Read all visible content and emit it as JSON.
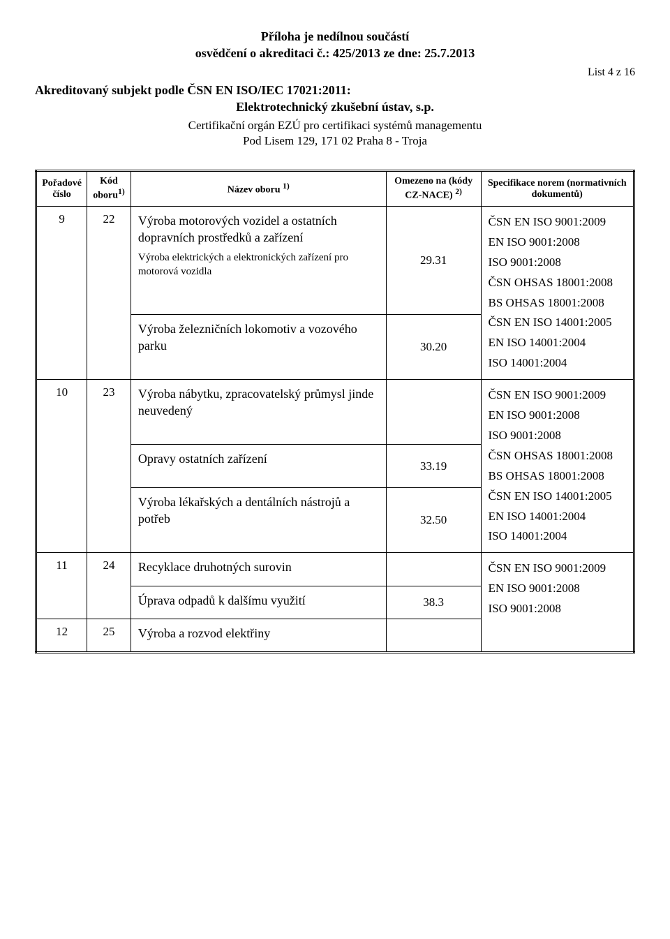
{
  "header": {
    "line1": "Příloha je nedílnou součástí",
    "line2": "osvědčení o akreditaci č.: 425/2013 ze dne: 25.7.2013",
    "list": "List 4 z 16",
    "subject_line1": "Akreditovaný subjekt podle ČSN EN ISO/IEC 17021:2011:",
    "subject_line2": "Elektrotechnický zkušební ústav, s.p.",
    "cert_line1": "Certifikační orgán EZÚ pro certifikaci systémů managementu",
    "cert_line2": "Pod Lisem 129, 171 02  Praha 8 - Troja"
  },
  "columns": {
    "poradove": "Pořadové číslo",
    "kod": "Kód oboru",
    "kod_sup": "1)",
    "nazev": "Název oboru ",
    "nazev_sup": "1)",
    "omezeno": "Omezeno na (kódy CZ-NACE) ",
    "omezeno_sup": "2)",
    "spec": "Specifikace norem (normativních dokumentů)"
  },
  "rows": [
    {
      "poradove": "9",
      "kod": "22",
      "nazev_blocks": [
        {
          "main": "Výroba motorových vozidel a ostatních dopravních prostředků a zařízení",
          "sub": "Výroba elektrických a elektronických zařízení pro motorová vozidla",
          "code": "29.31"
        },
        {
          "main": "Výroba železničních lokomotiv a vozového parku",
          "code": "30.20"
        }
      ],
      "spec": [
        "ČSN EN ISO 9001:2009",
        "EN ISO 9001:2008",
        "ISO 9001:2008",
        "ČSN OHSAS 18001:2008",
        "BS OHSAS 18001:2008",
        "ČSN EN ISO 14001:2005",
        "EN ISO 14001:2004",
        "ISO 14001:2004"
      ]
    },
    {
      "poradove": "10",
      "kod": "23",
      "nazev_blocks": [
        {
          "main": "Výroba nábytku, zpracovatelský průmysl jinde neuvedený",
          "code": ""
        },
        {
          "main": "Opravy ostatních zařízení",
          "code": "33.19"
        },
        {
          "main": "Výroba lékařských a dentálních nástrojů a potřeb",
          "code": "32.50"
        }
      ],
      "spec": [
        "ČSN EN ISO 9001:2009",
        "EN ISO 9001:2008",
        "ISO 9001:2008",
        "ČSN OHSAS 18001:2008",
        "BS OHSAS 18001:2008",
        "ČSN EN ISO 14001:2005",
        "EN ISO 14001:2004",
        "ISO 14001:2004"
      ]
    },
    {
      "poradove": "11",
      "kod": "24",
      "nazev_blocks": [
        {
          "main": "Recyklace druhotných surovin",
          "code": ""
        },
        {
          "main": "Úprava odpadů k dalšímu využití",
          "code": "38.3"
        }
      ],
      "spec": [
        "ČSN EN ISO 9001:2009",
        "EN ISO 9001:2008",
        "ISO 9001:2008"
      ]
    },
    {
      "poradove": "12",
      "kod": "25",
      "nazev_blocks": [
        {
          "main": "Výroba a rozvod elektřiny",
          "code": ""
        }
      ],
      "spec": []
    }
  ]
}
